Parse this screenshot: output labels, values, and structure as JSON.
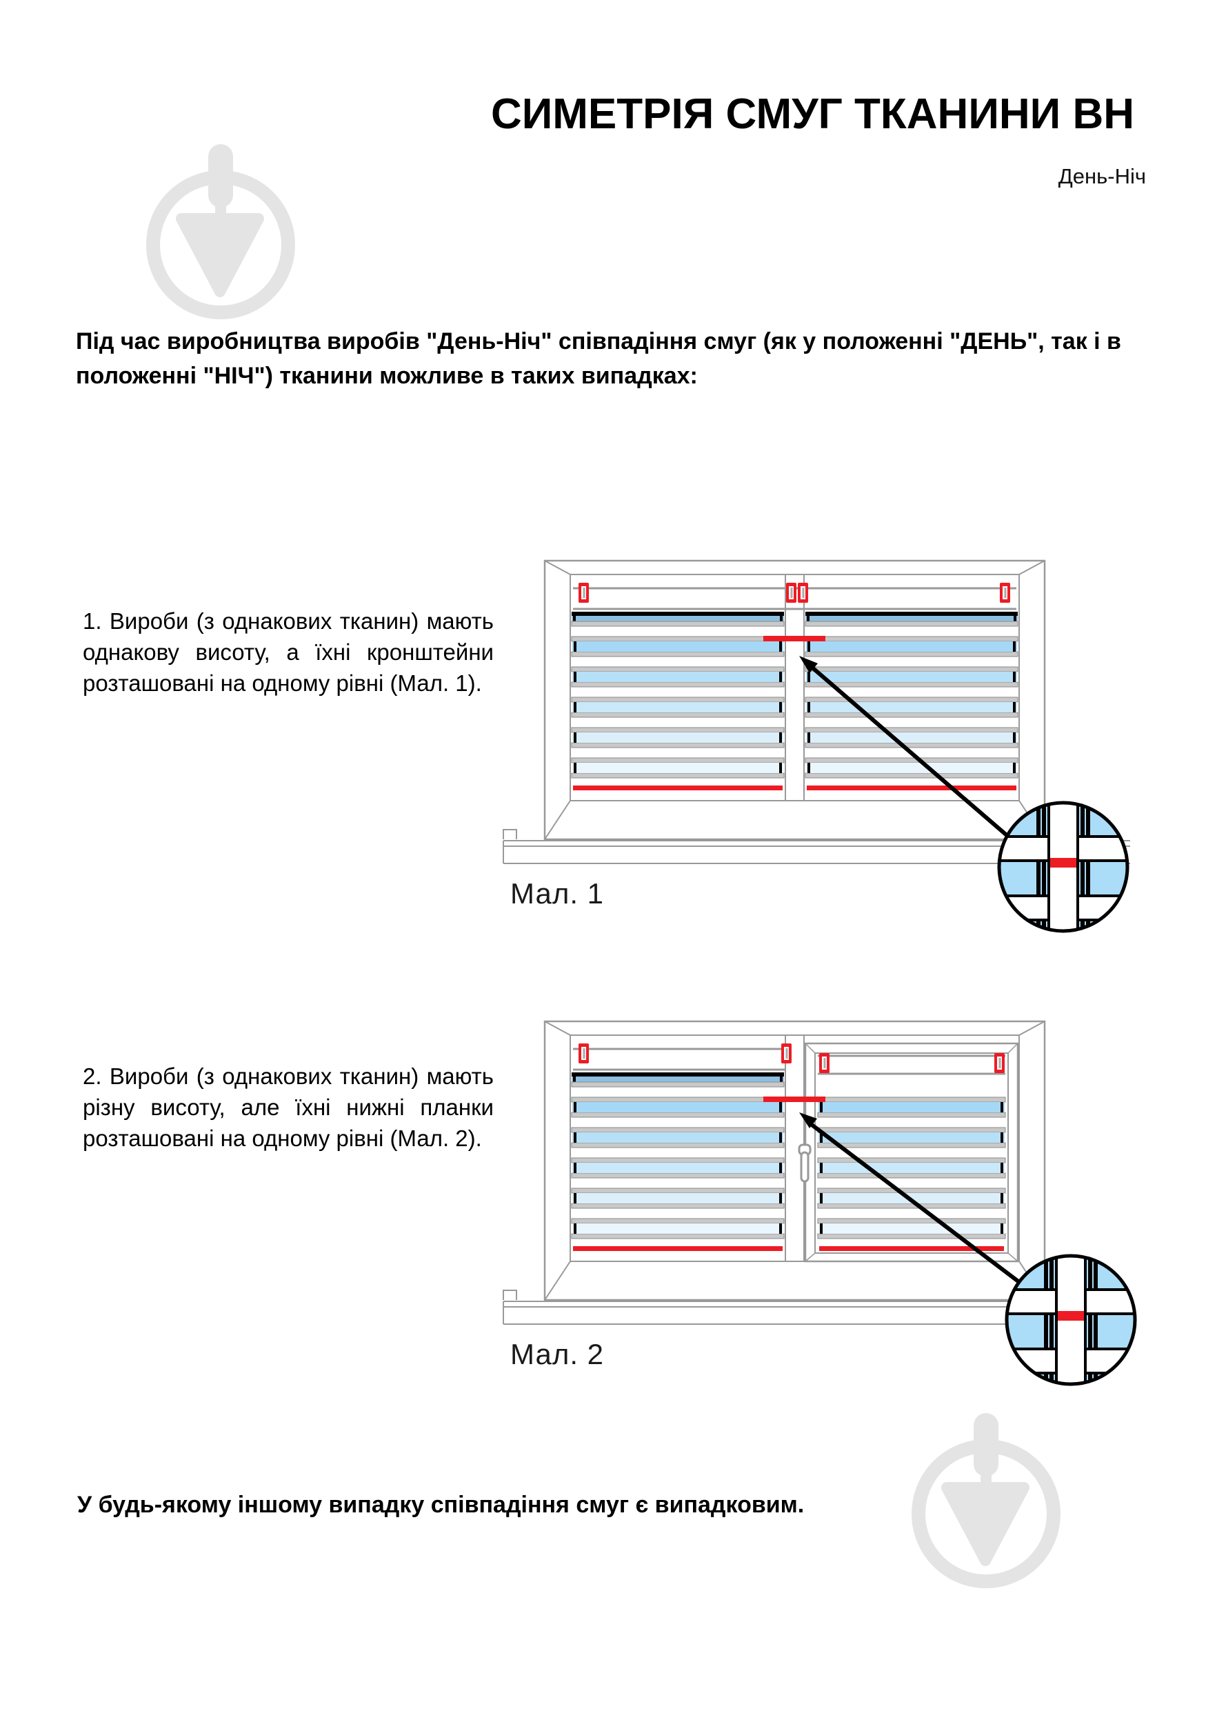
{
  "header": {
    "title": "СИМЕТРІЯ СМУГ ТКАНИНИ ВН",
    "subtitle": "День-Ніч"
  },
  "intro": {
    "text": "Під час виробництва виробів \"День-Ніч\" співпадіння смуг (як у положенні \"ДЕНЬ\", так і в положенні \"НІЧ\") тканини можливе в таких випадках:"
  },
  "items": [
    {
      "text": "1. Вироби (з однакових тканин) мають однакову висоту, а їхні кронштейни розташовані на одному рівні (Мал. 1)."
    },
    {
      "text": "2. Вироби (з однакових тканин) мають різну висоту, але їхні нижні планки розташовані на одному рівні (Мал. 2)."
    }
  ],
  "figures": [
    {
      "caption": "Мал. 1"
    },
    {
      "caption": "Мал. 2"
    }
  ],
  "footer": {
    "text": "У будь-якому іншому випадку співпадіння смуг є випадковим."
  },
  "icons": {
    "watermark": "trowel-in-circle-logo"
  },
  "colors": {
    "accent_red": "#ed1c24",
    "frame_gray": "#999999",
    "slat_gray": "#c9c9c9",
    "slat_edge": "#8a8a8a",
    "stripe_black": "#000000",
    "dark_stripe_blue": "#8cc0e2",
    "magnifier_blue": "#abdcf8",
    "watermark_gray": "#e4e4e4",
    "stripe_blues": [
      "#a5d8f6",
      "#b6e0f8",
      "#c9e8fa",
      "#dbeffb",
      "#eaf6fd"
    ]
  }
}
